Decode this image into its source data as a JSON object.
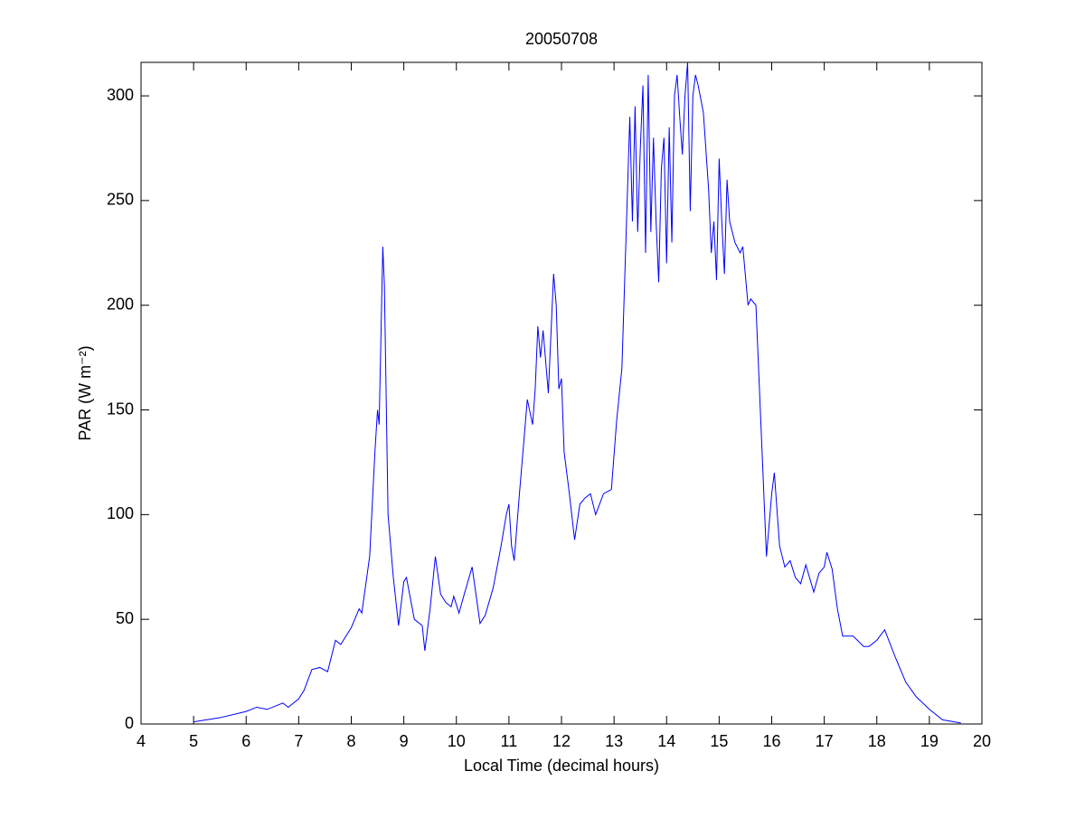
{
  "chart_data": {
    "type": "line",
    "title": "20050708",
    "xlabel": "Local Time (decimal hours)",
    "ylabel": "PAR (W m⁻²)",
    "xlim": [
      4,
      20
    ],
    "ylim": [
      0,
      316
    ],
    "xticks": [
      4,
      5,
      6,
      7,
      8,
      9,
      10,
      11,
      12,
      13,
      14,
      15,
      16,
      17,
      18,
      19,
      20
    ],
    "yticks": [
      0,
      50,
      100,
      150,
      200,
      250,
      300
    ],
    "grid": false,
    "series": [
      {
        "color": "#0000ff",
        "x": [
          5.0,
          5.5,
          6.0,
          6.2,
          6.4,
          6.7,
          6.8,
          7.0,
          7.1,
          7.25,
          7.4,
          7.55,
          7.7,
          7.8,
          8.0,
          8.15,
          8.2,
          8.35,
          8.45,
          8.5,
          8.53,
          8.6,
          8.63,
          8.7,
          8.8,
          8.9,
          9.0,
          9.05,
          9.2,
          9.35,
          9.4,
          9.5,
          9.6,
          9.7,
          9.8,
          9.9,
          9.95,
          10.05,
          10.15,
          10.3,
          10.45,
          10.55,
          10.7,
          10.85,
          10.95,
          11.0,
          11.05,
          11.1,
          11.2,
          11.35,
          11.45,
          11.5,
          11.55,
          11.6,
          11.65,
          11.75,
          11.85,
          11.9,
          11.95,
          12.0,
          12.05,
          12.15,
          12.25,
          12.35,
          12.45,
          12.55,
          12.65,
          12.8,
          12.95,
          13.05,
          13.15,
          13.25,
          13.3,
          13.35,
          13.4,
          13.45,
          13.5,
          13.55,
          13.6,
          13.65,
          13.7,
          13.75,
          13.8,
          13.85,
          13.9,
          13.95,
          14.0,
          14.05,
          14.1,
          14.15,
          14.2,
          14.25,
          14.3,
          14.35,
          14.4,
          14.45,
          14.5,
          14.55,
          14.6,
          14.7,
          14.8,
          14.85,
          14.9,
          14.95,
          15.0,
          15.05,
          15.1,
          15.15,
          15.2,
          15.3,
          15.4,
          15.45,
          15.55,
          15.6,
          15.7,
          15.8,
          15.9,
          16.0,
          16.05,
          16.15,
          16.25,
          16.35,
          16.45,
          16.55,
          16.65,
          16.8,
          16.9,
          17.0,
          17.05,
          17.15,
          17.25,
          17.35,
          17.55,
          17.75,
          17.85,
          18.0,
          18.15,
          18.35,
          18.55,
          18.75,
          19.0,
          19.25,
          19.6
        ],
        "values": [
          1,
          3,
          6,
          8,
          7,
          10,
          8,
          12,
          16,
          26,
          27,
          25,
          40,
          38,
          46,
          55,
          53,
          80,
          130,
          150,
          143,
          228,
          210,
          100,
          70,
          47,
          68,
          70,
          50,
          47,
          35,
          55,
          80,
          62,
          58,
          56,
          61,
          53,
          62,
          75,
          48,
          52,
          65,
          85,
          100,
          105,
          85,
          78,
          110,
          155,
          143,
          160,
          190,
          175,
          188,
          158,
          215,
          200,
          160,
          165,
          130,
          110,
          88,
          105,
          108,
          110,
          100,
          110,
          112,
          145,
          170,
          250,
          290,
          240,
          295,
          235,
          275,
          305,
          225,
          310,
          235,
          280,
          240,
          211,
          265,
          280,
          220,
          285,
          230,
          300,
          310,
          290,
          272,
          300,
          316,
          245,
          300,
          310,
          305,
          292,
          255,
          225,
          240,
          212,
          270,
          240,
          215,
          260,
          240,
          230,
          225,
          228,
          200,
          203,
          200,
          140,
          80,
          110,
          120,
          85,
          75,
          78,
          70,
          67,
          76,
          63,
          72,
          75,
          82,
          74,
          55,
          42,
          42,
          37,
          37,
          40,
          45,
          32,
          20,
          13,
          7,
          2,
          0.5
        ]
      }
    ]
  }
}
